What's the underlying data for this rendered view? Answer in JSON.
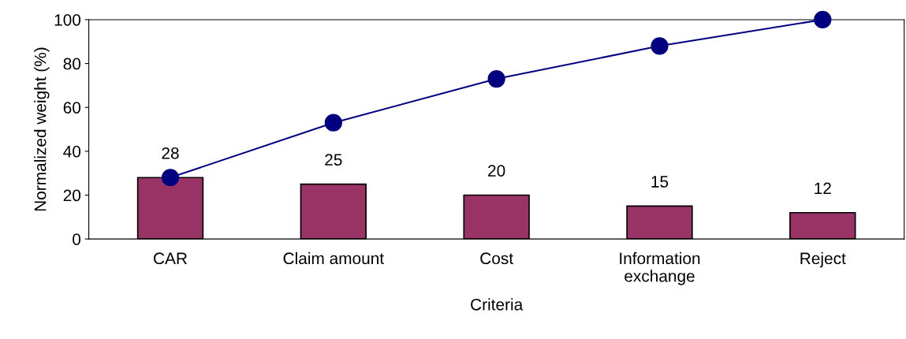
{
  "chart_data": {
    "type": "bar",
    "xlabel": "Criteria",
    "ylabel": "Normalized weight (%)",
    "categories": [
      "CAR",
      "Claim amount",
      "Cost",
      "Information\nexchange",
      "Reject"
    ],
    "series": [
      {
        "color": "#993366",
        "values": [
          28,
          25,
          20,
          15,
          12
        ],
        "value_labels": [
          "28",
          "25",
          "20",
          "15",
          "12"
        ]
      },
      {
        "type": "line",
        "color": "#000080",
        "values": [
          28,
          53,
          73,
          88,
          100
        ],
        "marker": "circle",
        "line_style": "solid"
      }
    ],
    "ylim": [
      0,
      100
    ],
    "yticks": [
      0,
      20,
      40,
      60,
      80,
      100
    ],
    "grid": false,
    "legend": false
  }
}
